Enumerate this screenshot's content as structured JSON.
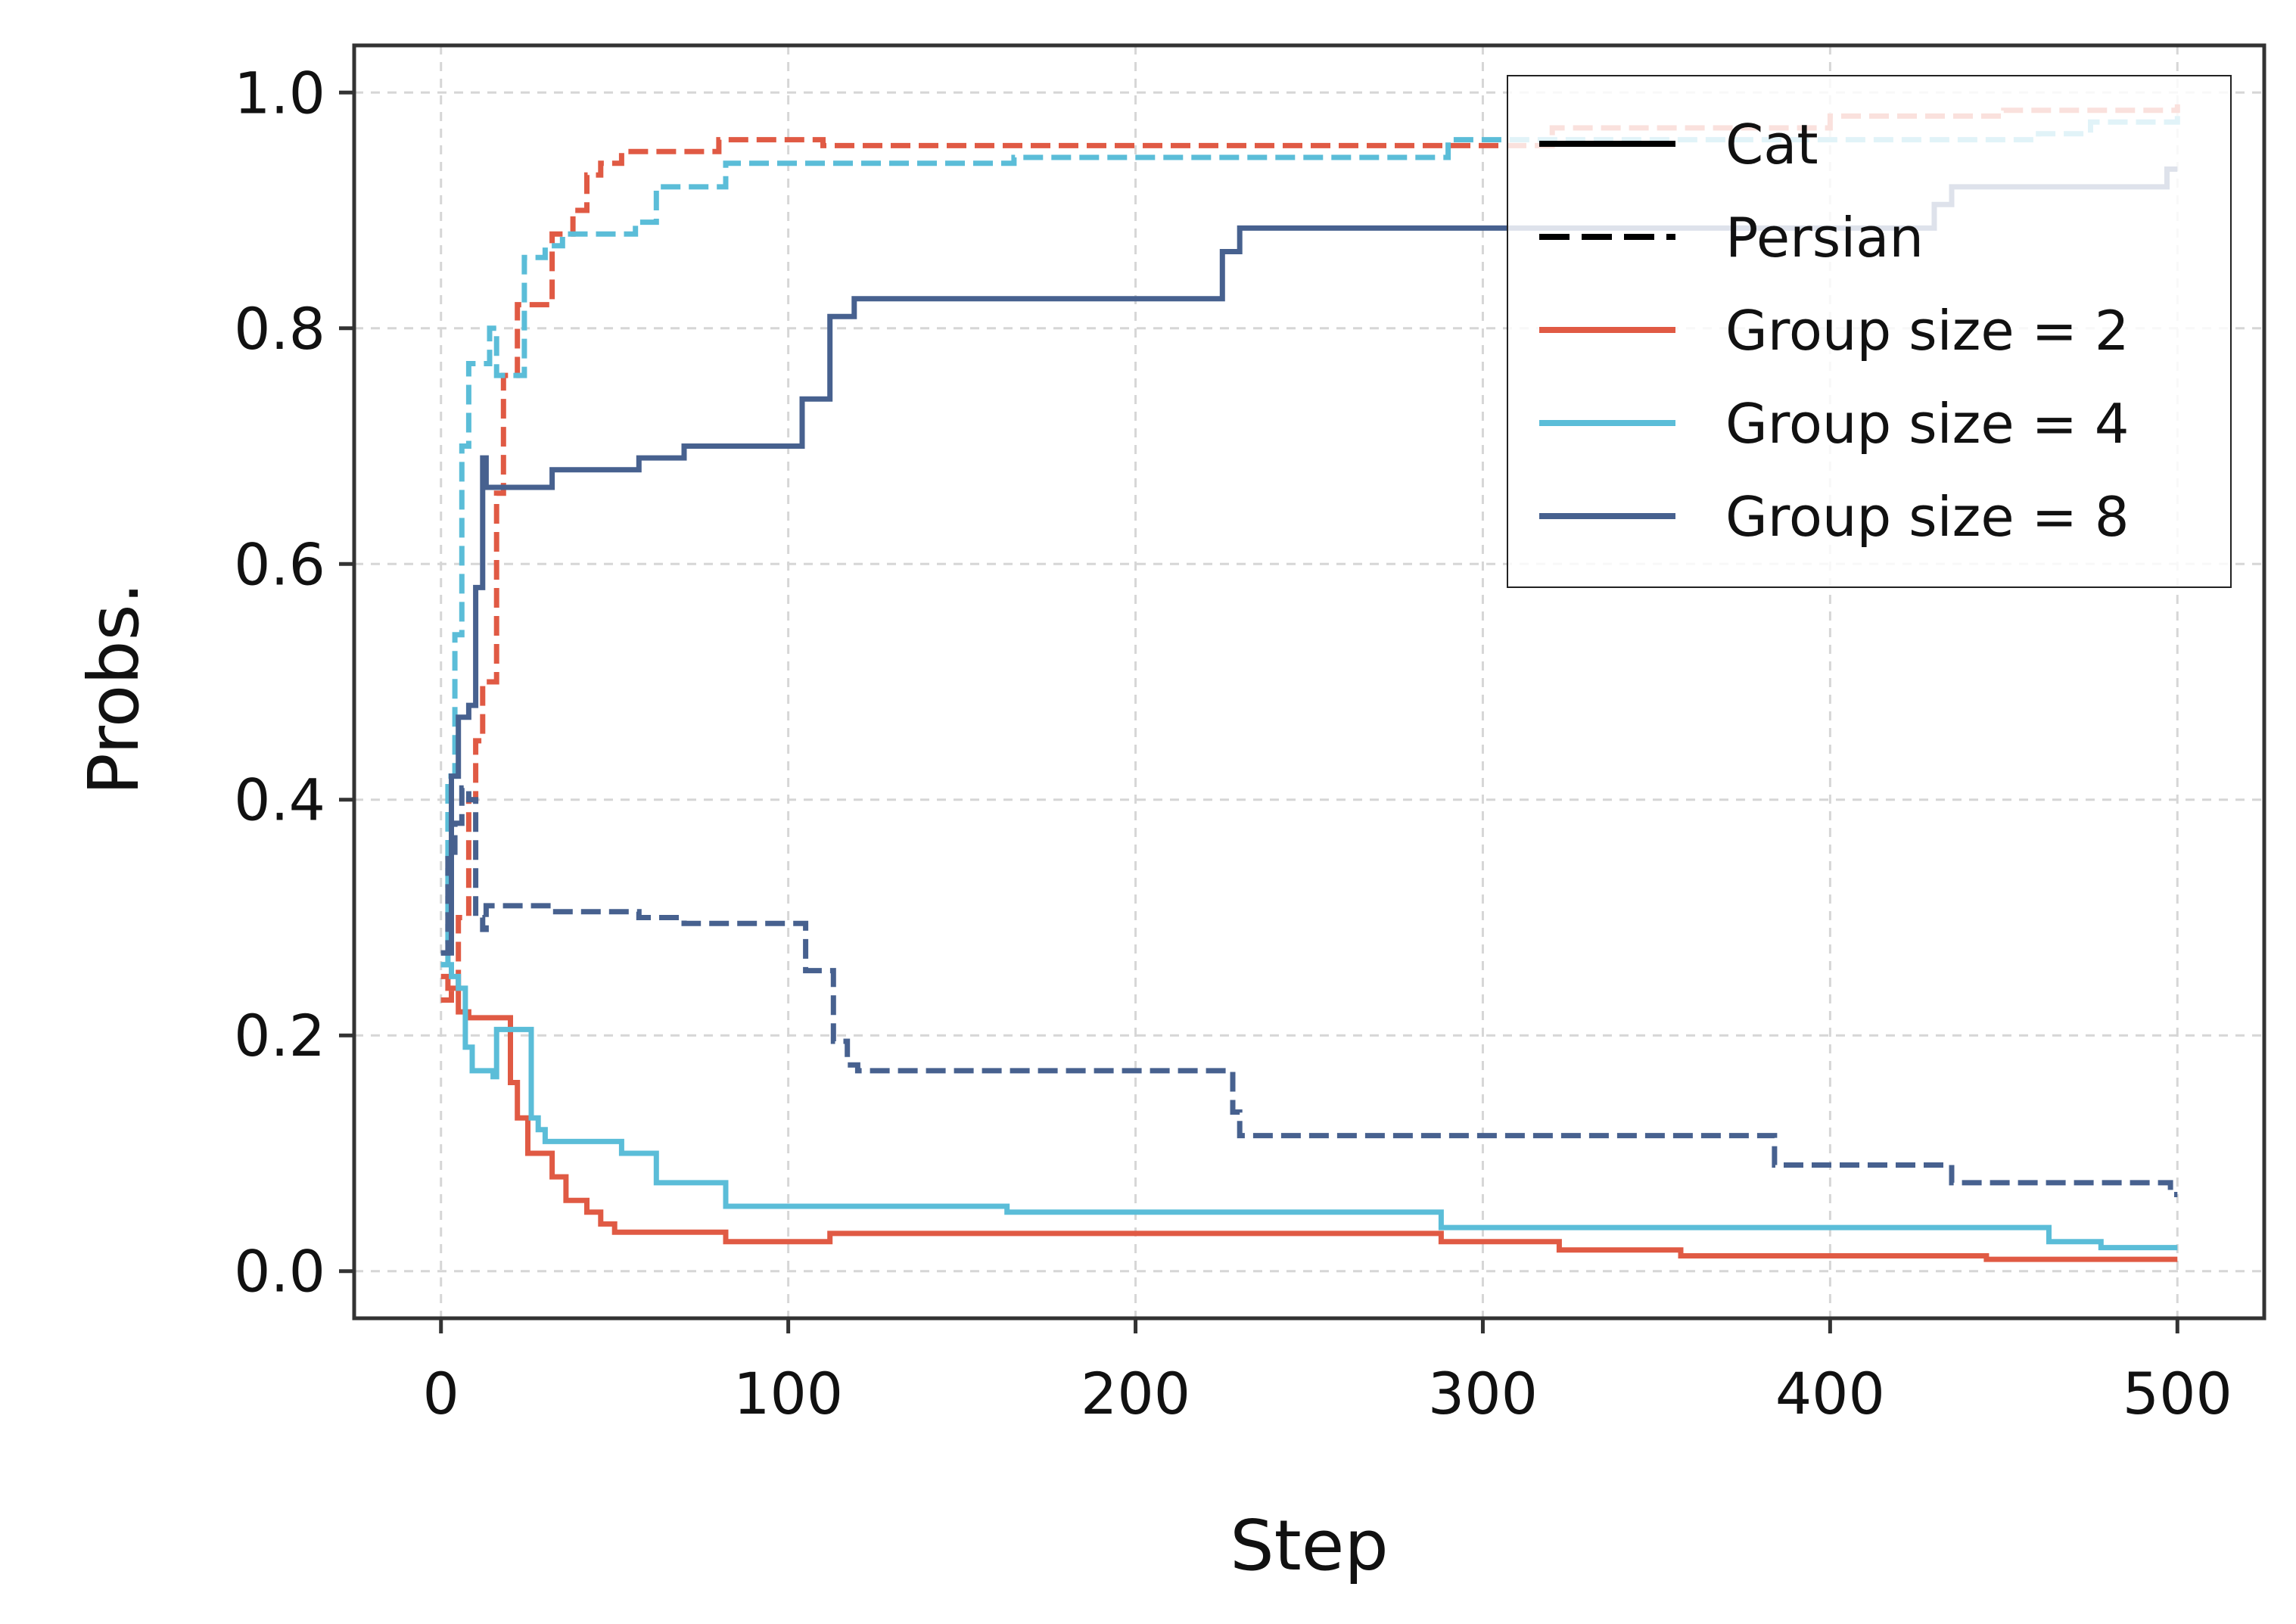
{
  "chart_data": {
    "type": "line",
    "title": "",
    "xlabel": "Step",
    "ylabel": "Probs.",
    "xlim": [
      -25,
      525
    ],
    "ylim": [
      -0.04,
      1.04
    ],
    "xticks": [
      0,
      100,
      200,
      300,
      400,
      500
    ],
    "xtick_labels": [
      "0",
      "100",
      "200",
      "300",
      "400",
      "500"
    ],
    "yticks": [
      0.0,
      0.2,
      0.4,
      0.6,
      0.8,
      1.0
    ],
    "ytick_labels": [
      "0.0",
      "0.2",
      "0.4",
      "0.6",
      "0.8",
      "1.0"
    ],
    "grid": true,
    "legend_position": "top-right",
    "legend": [
      {
        "label": "Cat",
        "color": "#000000",
        "style": "solid"
      },
      {
        "label": "Persian",
        "color": "#000000",
        "style": "dashed"
      },
      {
        "label": "Group size = 2",
        "color": "#e05a44",
        "style": "solid"
      },
      {
        "label": "Group size = 4",
        "color": "#5bbdd8",
        "style": "solid"
      },
      {
        "label": "Group size = 8",
        "color": "#47618f",
        "style": "solid"
      }
    ],
    "series": [
      {
        "name": "Group size = 2 — Persian",
        "group": "Group size = 2",
        "label": "Persian",
        "color": "#e05a44",
        "style": "dashed",
        "points": [
          [
            0,
            0.23
          ],
          [
            3,
            0.24
          ],
          [
            5,
            0.3
          ],
          [
            8,
            0.4
          ],
          [
            10,
            0.45
          ],
          [
            12,
            0.5
          ],
          [
            15,
            0.5
          ],
          [
            16,
            0.66
          ],
          [
            18,
            0.76
          ],
          [
            20,
            0.76
          ],
          [
            22,
            0.82
          ],
          [
            30,
            0.82
          ],
          [
            32,
            0.88
          ],
          [
            38,
            0.9
          ],
          [
            42,
            0.93
          ],
          [
            46,
            0.94
          ],
          [
            52,
            0.95
          ],
          [
            75,
            0.95
          ],
          [
            80,
            0.96
          ],
          [
            100,
            0.96
          ],
          [
            108,
            0.96
          ],
          [
            110,
            0.955
          ],
          [
            150,
            0.955
          ],
          [
            300,
            0.955
          ],
          [
            320,
            0.97
          ],
          [
            400,
            0.98
          ],
          [
            450,
            0.985
          ],
          [
            500,
            0.99
          ]
        ]
      },
      {
        "name": "Group size = 4 — Persian",
        "group": "Group size = 4",
        "label": "Persian",
        "color": "#5bbdd8",
        "style": "dashed",
        "points": [
          [
            0,
            0.26
          ],
          [
            2,
            0.42
          ],
          [
            4,
            0.54
          ],
          [
            6,
            0.7
          ],
          [
            8,
            0.77
          ],
          [
            12,
            0.77
          ],
          [
            14,
            0.8
          ],
          [
            16,
            0.76
          ],
          [
            22,
            0.76
          ],
          [
            24,
            0.86
          ],
          [
            30,
            0.87
          ],
          [
            35,
            0.88
          ],
          [
            50,
            0.88
          ],
          [
            56,
            0.89
          ],
          [
            62,
            0.92
          ],
          [
            80,
            0.92
          ],
          [
            82,
            0.94
          ],
          [
            160,
            0.94
          ],
          [
            165,
            0.945
          ],
          [
            285,
            0.945
          ],
          [
            290,
            0.96
          ],
          [
            300,
            0.96
          ],
          [
            400,
            0.96
          ],
          [
            460,
            0.965
          ],
          [
            475,
            0.975
          ],
          [
            500,
            0.98
          ]
        ]
      },
      {
        "name": "Group size = 8 — Persian",
        "group": "Group size = 8",
        "label": "Persian",
        "color": "#47618f",
        "style": "dashed",
        "points": [
          [
            0,
            0.27
          ],
          [
            2,
            0.35
          ],
          [
            4,
            0.38
          ],
          [
            6,
            0.41
          ],
          [
            8,
            0.4
          ],
          [
            10,
            0.3
          ],
          [
            12,
            0.29
          ],
          [
            13,
            0.31
          ],
          [
            30,
            0.31
          ],
          [
            32,
            0.305
          ],
          [
            55,
            0.305
          ],
          [
            57,
            0.3
          ],
          [
            68,
            0.3
          ],
          [
            70,
            0.295
          ],
          [
            103,
            0.295
          ],
          [
            105,
            0.255
          ],
          [
            110,
            0.255
          ],
          [
            113,
            0.195
          ],
          [
            117,
            0.175
          ],
          [
            120,
            0.17
          ],
          [
            224,
            0.17
          ],
          [
            228,
            0.135
          ],
          [
            230,
            0.115
          ],
          [
            382,
            0.115
          ],
          [
            384,
            0.09
          ],
          [
            433,
            0.09
          ],
          [
            435,
            0.075
          ],
          [
            495,
            0.075
          ],
          [
            498,
            0.065
          ],
          [
            500,
            0.065
          ]
        ]
      },
      {
        "name": "Group size = 2 — Cat",
        "group": "Group size = 2",
        "label": "Cat",
        "color": "#e05a44",
        "style": "solid",
        "points": [
          [
            0,
            0.25
          ],
          [
            2,
            0.24
          ],
          [
            5,
            0.22
          ],
          [
            8,
            0.215
          ],
          [
            18,
            0.215
          ],
          [
            20,
            0.16
          ],
          [
            22,
            0.13
          ],
          [
            25,
            0.1
          ],
          [
            30,
            0.1
          ],
          [
            32,
            0.08
          ],
          [
            36,
            0.06
          ],
          [
            42,
            0.05
          ],
          [
            46,
            0.04
          ],
          [
            50,
            0.033
          ],
          [
            80,
            0.033
          ],
          [
            82,
            0.025
          ],
          [
            110,
            0.025
          ],
          [
            112,
            0.032
          ],
          [
            285,
            0.032
          ],
          [
            288,
            0.025
          ],
          [
            320,
            0.025
          ],
          [
            322,
            0.018
          ],
          [
            355,
            0.018
          ],
          [
            357,
            0.013
          ],
          [
            440,
            0.013
          ],
          [
            445,
            0.01
          ],
          [
            500,
            0.01
          ]
        ]
      },
      {
        "name": "Group size = 4 — Cat",
        "group": "Group size = 4",
        "label": "Cat",
        "color": "#5bbdd8",
        "style": "solid",
        "points": [
          [
            0,
            0.26
          ],
          [
            3,
            0.25
          ],
          [
            5,
            0.24
          ],
          [
            7,
            0.19
          ],
          [
            9,
            0.17
          ],
          [
            15,
            0.165
          ],
          [
            16,
            0.205
          ],
          [
            25,
            0.205
          ],
          [
            26,
            0.13
          ],
          [
            28,
            0.12
          ],
          [
            30,
            0.11
          ],
          [
            50,
            0.11
          ],
          [
            52,
            0.1
          ],
          [
            60,
            0.1
          ],
          [
            62,
            0.075
          ],
          [
            80,
            0.075
          ],
          [
            82,
            0.055
          ],
          [
            160,
            0.055
          ],
          [
            163,
            0.05
          ],
          [
            285,
            0.05
          ],
          [
            288,
            0.037
          ],
          [
            460,
            0.037
          ],
          [
            463,
            0.025
          ],
          [
            475,
            0.025
          ],
          [
            478,
            0.02
          ],
          [
            500,
            0.02
          ]
        ]
      },
      {
        "name": "Group size = 8 — Cat",
        "group": "Group size = 8",
        "label": "Cat",
        "color": "#47618f",
        "style": "solid",
        "points": [
          [
            0,
            0.27
          ],
          [
            3,
            0.42
          ],
          [
            5,
            0.47
          ],
          [
            8,
            0.48
          ],
          [
            10,
            0.58
          ],
          [
            12,
            0.69
          ],
          [
            13,
            0.665
          ],
          [
            30,
            0.665
          ],
          [
            32,
            0.68
          ],
          [
            55,
            0.68
          ],
          [
            57,
            0.69
          ],
          [
            68,
            0.69
          ],
          [
            70,
            0.7
          ],
          [
            102,
            0.7
          ],
          [
            104,
            0.74
          ],
          [
            110,
            0.74
          ],
          [
            112,
            0.81
          ],
          [
            117,
            0.81
          ],
          [
            119,
            0.825
          ],
          [
            223,
            0.825
          ],
          [
            225,
            0.865
          ],
          [
            228,
            0.865
          ],
          [
            230,
            0.885
          ],
          [
            420,
            0.885
          ],
          [
            430,
            0.905
          ],
          [
            435,
            0.92
          ],
          [
            495,
            0.92
          ],
          [
            497,
            0.935
          ],
          [
            500,
            0.935
          ]
        ]
      }
    ]
  }
}
